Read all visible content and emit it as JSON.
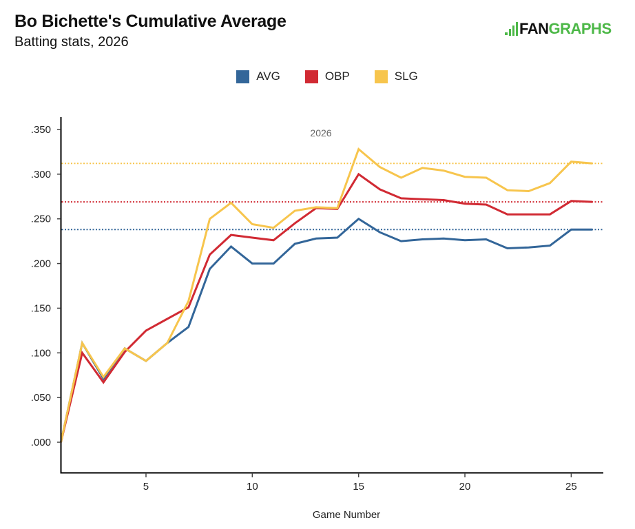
{
  "header": {
    "title": "Bo Bichette's Cumulative Average",
    "subtitle": "Batting stats, 2026",
    "logo_text_dark": "FAN",
    "logo_text_green": "GRAPHS",
    "logo_color": "#4db848"
  },
  "chart_data": {
    "type": "line",
    "title": "Bo Bichette's Cumulative Average",
    "subtitle": "Batting stats, 2026",
    "xlabel": "Game Number",
    "ylabel": "",
    "annotation": "2026",
    "x": [
      1,
      2,
      3,
      4,
      5,
      6,
      7,
      8,
      9,
      10,
      11,
      12,
      13,
      14,
      15,
      16,
      17,
      18,
      19,
      20,
      21,
      22,
      23,
      24,
      25,
      26
    ],
    "xlim": [
      1,
      27.5
    ],
    "ylim": [
      -0.035,
      0.36
    ],
    "x_ticks": [
      5,
      10,
      15,
      20,
      25
    ],
    "x_tick_labels": [
      "5",
      "10",
      "15",
      "20",
      "25"
    ],
    "y_ticks": [
      0,
      0.05,
      0.1,
      0.15,
      0.2,
      0.25,
      0.3,
      0.35
    ],
    "y_tick_labels": [
      ".000",
      ".050",
      ".100",
      ".150",
      ".200",
      ".250",
      ".300",
      ".350"
    ],
    "grid": false,
    "legend_position": "top-center",
    "series": [
      {
        "name": "AVG",
        "color": "#336699",
        "reference": 0.238,
        "values": [
          0.0,
          0.111,
          0.071,
          0.105,
          0.091,
          0.111,
          0.129,
          0.194,
          0.219,
          0.2,
          0.2,
          0.222,
          0.228,
          0.229,
          0.25,
          0.235,
          0.225,
          0.227,
          0.228,
          0.226,
          0.227,
          0.217,
          0.218,
          0.22,
          0.238,
          0.238
        ]
      },
      {
        "name": "OBP",
        "color": "#d12a33",
        "reference": 0.269,
        "values": [
          0.0,
          0.1,
          0.067,
          0.101,
          0.125,
          0.138,
          0.151,
          0.21,
          0.232,
          0.229,
          0.226,
          0.245,
          0.262,
          0.261,
          0.3,
          0.283,
          0.273,
          0.272,
          0.271,
          0.267,
          0.266,
          0.255,
          0.255,
          0.255,
          0.27,
          0.269
        ]
      },
      {
        "name": "SLG",
        "color": "#f7c54d",
        "reference": 0.312,
        "values": [
          0.0,
          0.111,
          0.073,
          0.105,
          0.091,
          0.111,
          0.158,
          0.25,
          0.268,
          0.244,
          0.24,
          0.259,
          0.263,
          0.262,
          0.328,
          0.308,
          0.296,
          0.307,
          0.304,
          0.297,
          0.296,
          0.282,
          0.281,
          0.29,
          0.314,
          0.312
        ]
      }
    ]
  }
}
